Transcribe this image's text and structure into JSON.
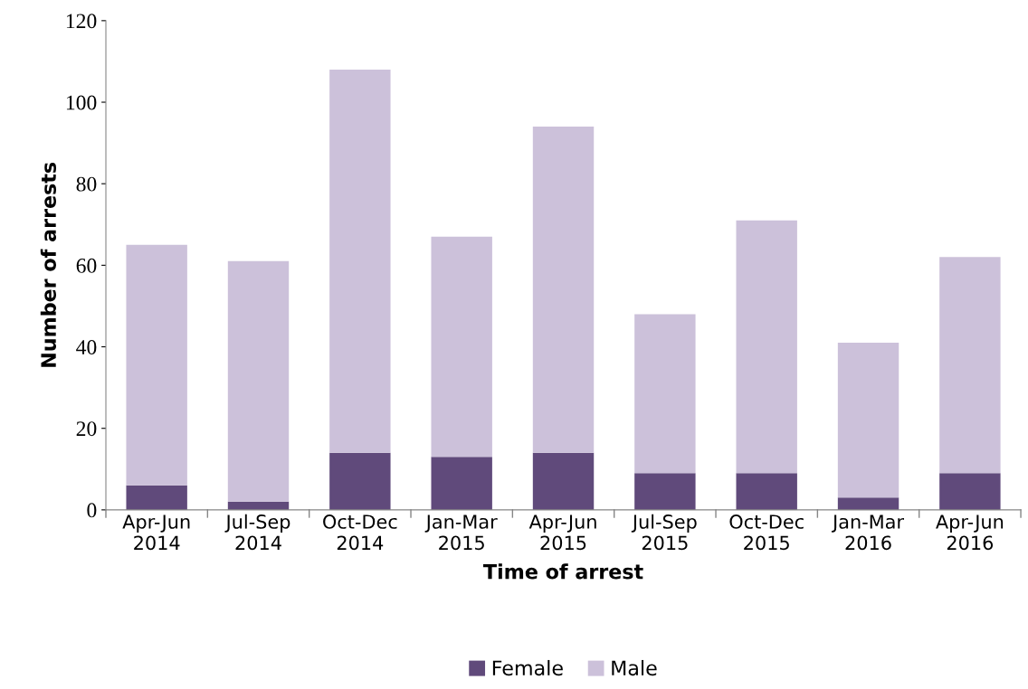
{
  "chart_data": {
    "type": "bar",
    "stacked": true,
    "xlabel": "Time of arrest",
    "ylabel": "Number of arrests",
    "categories": [
      "Apr-Jun\n2014",
      "Jul-Sep\n2014",
      "Oct-Dec\n2014",
      "Jan-Mar\n2015",
      "Apr-Jun\n2015",
      "Jul-Sep\n2015",
      "Oct-Dec\n2015",
      "Jan-Mar\n2016",
      "Apr-Jun\n2016"
    ],
    "series": [
      {
        "name": "Female",
        "color": "#604a7b",
        "values": [
          6,
          2,
          14,
          13,
          14,
          9,
          9,
          3,
          9
        ]
      },
      {
        "name": "Male",
        "color": "#ccc1da",
        "values": [
          59,
          59,
          94,
          54,
          80,
          39,
          62,
          38,
          53
        ]
      }
    ],
    "ylim": [
      0,
      120
    ],
    "yticks": [
      0,
      20,
      40,
      60,
      80,
      100,
      120
    ],
    "grid": false,
    "legend": "bottom"
  }
}
